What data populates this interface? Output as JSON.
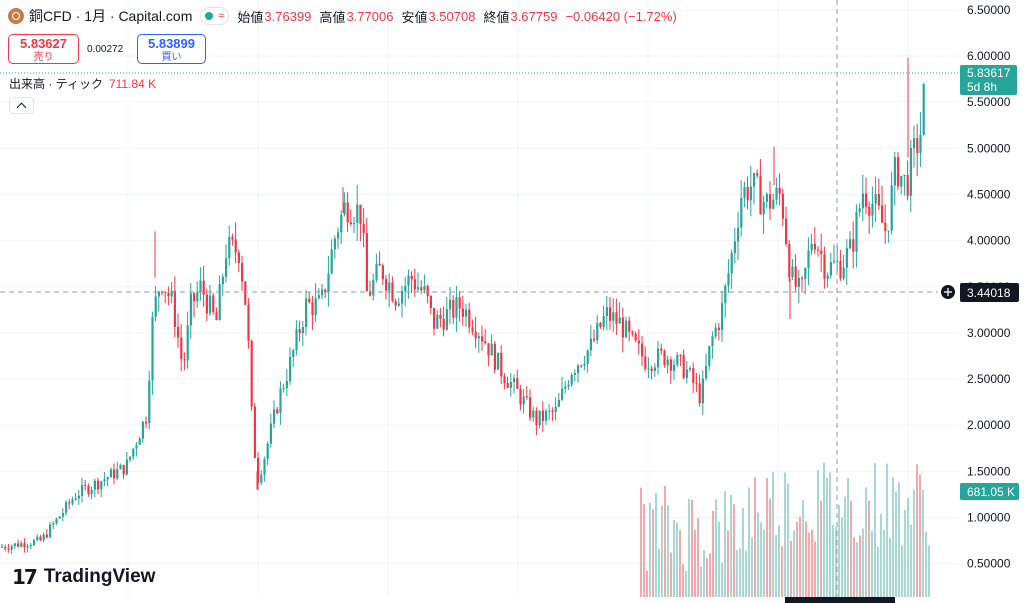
{
  "header": {
    "symbol": "銅CFD · 1月 · Capital.com",
    "open_label": "始値",
    "open": "3.76399",
    "high_label": "高値",
    "high": "3.77006",
    "low_label": "安値",
    "low": "3.50708",
    "close_label": "終値",
    "close": "3.67759",
    "change": "−0.06420 (−1.72%)"
  },
  "trade": {
    "sell_price": "5.83627",
    "sell_label": "売り",
    "spread": "0.00272",
    "buy_price": "5.83899",
    "buy_label": "買い"
  },
  "volume": {
    "label": "出来高 · ティック",
    "value": "711.84 K"
  },
  "price_axis": {
    "ticks": [
      "6.50000",
      "6.00000",
      "5.50000",
      "5.00000",
      "4.50000",
      "4.00000",
      "3.50000",
      "3.00000",
      "2.50000",
      "2.00000",
      "1.50000",
      "1.00000",
      "0.50000"
    ],
    "last_price": "5.83617",
    "countdown": "5d 8h",
    "crosshair_price": "3.44018",
    "volume_tag": "681.05 K"
  },
  "brand": "TradingView",
  "colors": {
    "up": "#26a69a",
    "down": "#f23645",
    "up_vol": "#a7d8d2",
    "down_vol": "#f5a8ac"
  },
  "chart_data": {
    "type": "candlestick",
    "ylim": [
      0.5,
      6.5
    ],
    "keypoints": [
      [
        0,
        0.68
      ],
      [
        40,
        0.75
      ],
      [
        75,
        1.25
      ],
      [
        100,
        1.4
      ],
      [
        125,
        1.55
      ],
      [
        145,
        2.1
      ],
      [
        152,
        3.2
      ],
      [
        160,
        3.6
      ],
      [
        172,
        3.3
      ],
      [
        182,
        2.6
      ],
      [
        190,
        3.3
      ],
      [
        200,
        3.5
      ],
      [
        215,
        3.1
      ],
      [
        225,
        3.9
      ],
      [
        238,
        3.9
      ],
      [
        246,
        3.2
      ],
      [
        250,
        2.2
      ],
      [
        256,
        1.4
      ],
      [
        262,
        1.6
      ],
      [
        278,
        2.3
      ],
      [
        290,
        2.7
      ],
      [
        305,
        3.3
      ],
      [
        320,
        3.3
      ],
      [
        335,
        4.1
      ],
      [
        345,
        4.4
      ],
      [
        360,
        4.3
      ],
      [
        366,
        3.4
      ],
      [
        380,
        3.7
      ],
      [
        395,
        3.4
      ],
      [
        410,
        3.6
      ],
      [
        425,
        3.4
      ],
      [
        432,
        3.1
      ],
      [
        460,
        3.3
      ],
      [
        480,
        3.0
      ],
      [
        500,
        2.6
      ],
      [
        520,
        2.3
      ],
      [
        535,
        2.05
      ],
      [
        555,
        2.15
      ],
      [
        570,
        2.6
      ],
      [
        590,
        2.85
      ],
      [
        605,
        3.2
      ],
      [
        620,
        3.1
      ],
      [
        630,
        2.9
      ],
      [
        645,
        2.7
      ],
      [
        665,
        2.75
      ],
      [
        685,
        2.6
      ],
      [
        700,
        2.3
      ],
      [
        710,
        2.9
      ],
      [
        720,
        3.2
      ],
      [
        730,
        3.8
      ],
      [
        740,
        4.5
      ],
      [
        750,
        4.6
      ],
      [
        765,
        4.4
      ],
      [
        780,
        4.5
      ],
      [
        790,
        3.6
      ],
      [
        800,
        3.4
      ],
      [
        812,
        4.1
      ],
      [
        825,
        3.7
      ],
      [
        840,
        3.75
      ],
      [
        850,
        3.9
      ],
      [
        862,
        4.55
      ],
      [
        872,
        4.4
      ],
      [
        885,
        4.1
      ],
      [
        895,
        4.8
      ],
      [
        905,
        4.6
      ],
      [
        912,
        4.9
      ],
      [
        920,
        5.2
      ],
      [
        925,
        5.84
      ]
    ],
    "volume_bars": 97,
    "volume_start_x": 640,
    "volume_max": 1500
  }
}
